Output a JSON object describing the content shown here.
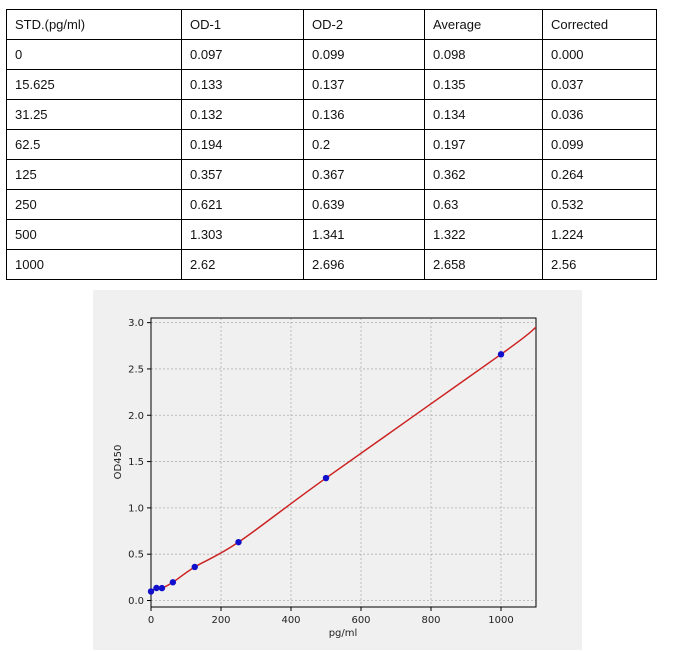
{
  "table": {
    "headers": [
      "STD.(pg/ml)",
      "OD-1",
      "OD-2",
      "Average",
      "Corrected"
    ],
    "rows": [
      [
        "0",
        "0.097",
        "0.099",
        "0.098",
        "0.000"
      ],
      [
        "15.625",
        "0.133",
        "0.137",
        "0.135",
        "0.037"
      ],
      [
        "31.25",
        "0.132",
        "0.136",
        "0.134",
        "0.036"
      ],
      [
        "62.5",
        "0.194",
        "0.2",
        "0.197",
        "0.099"
      ],
      [
        "125",
        "0.357",
        "0.367",
        "0.362",
        "0.264"
      ],
      [
        "250",
        "0.621",
        "0.639",
        "0.63",
        "0.532"
      ],
      [
        "500",
        "1.303",
        "1.341",
        "1.322",
        "1.224"
      ],
      [
        "1000",
        "2.62",
        "2.696",
        "2.658",
        "2.56"
      ]
    ]
  },
  "chart_data": {
    "type": "scatter",
    "title": "",
    "xlabel": "pg/ml",
    "ylabel": "OD450",
    "xlim": [
      0,
      1100
    ],
    "ylim": [
      -0.07,
      3.05
    ],
    "xticks": [
      0,
      200,
      400,
      600,
      800,
      1000
    ],
    "xtick_labels": [
      "0",
      "200",
      "400",
      "600",
      "800",
      "1000"
    ],
    "yticks": [
      0.0,
      0.5,
      1.0,
      1.5,
      2.0,
      2.5,
      3.0
    ],
    "ytick_labels": [
      "0.0",
      "0.5",
      "1.0",
      "1.5",
      "2.0",
      "2.5",
      "3.0"
    ],
    "grid": true,
    "points": {
      "x": [
        0,
        15.625,
        31.25,
        62.5,
        125,
        250,
        500,
        1000
      ],
      "y": [
        0.098,
        0.135,
        0.134,
        0.197,
        0.362,
        0.63,
        1.322,
        2.658
      ],
      "color": "#1010cc"
    },
    "fit_curve": {
      "x": [
        0,
        15.625,
        31.25,
        62.5,
        125,
        250,
        500,
        1000,
        1100
      ],
      "y": [
        0.098,
        0.135,
        0.134,
        0.197,
        0.362,
        0.63,
        1.322,
        2.658,
        2.95
      ],
      "color": "#cc2222"
    }
  }
}
